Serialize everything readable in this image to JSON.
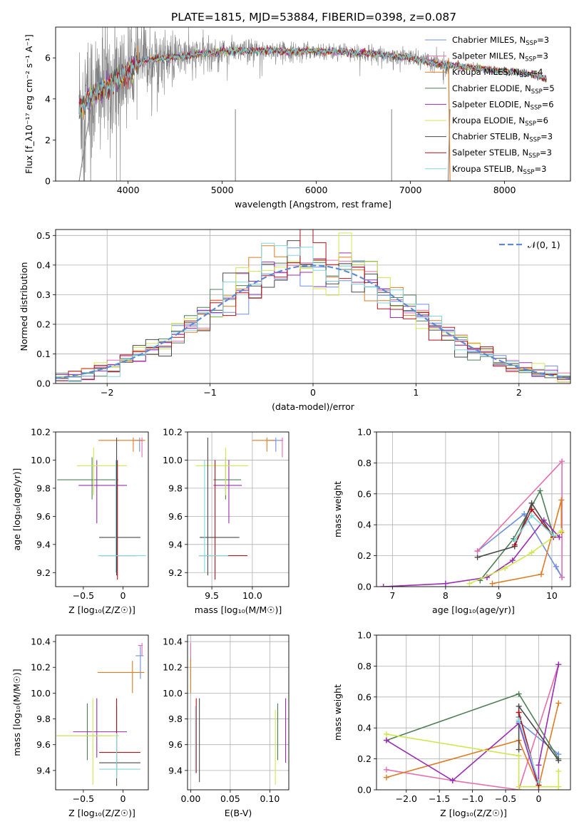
{
  "figure_title": "PLATE=1815, MJD=53884, FIBERID=0398, z=0.087",
  "colors": {
    "chabrier_miles": "#6f8fe0",
    "salpeter_miles": "#e66fae",
    "kroupa_miles": "#e07b22",
    "chabrier_elodie": "#4f7f57",
    "salpeter_elodie": "#9a2cb5",
    "kroupa_elodie": "#cfe84f",
    "chabrier_stelib": "#4a4a4a",
    "salpeter_stelib": "#b3121a",
    "kroupa_stelib": "#7fd8df",
    "data_spectrum": "#808080",
    "gaussian": "#5b8ad6",
    "grid": "#b0b0b0"
  },
  "chart_data": [
    {
      "id": "spectrum",
      "type": "line",
      "title": "",
      "xlabel": "wavelength [Angstrom, rest frame]",
      "ylabel": "Flux [f_λ10⁻¹⁷ erg cm⁻² s⁻¹ A⁻¹]",
      "xlim": [
        3230,
        8700
      ],
      "ylim": [
        0,
        7.5
      ],
      "xticks": [
        4000,
        5000,
        6000,
        7000,
        8000
      ],
      "yticks": [
        0,
        2,
        4,
        6
      ],
      "grid": false,
      "legend_position": "right",
      "legend": [
        {
          "label": "Chabrier MILES, N",
          "sub": "SSP",
          "suffix": "=3",
          "color": "chabrier_miles"
        },
        {
          "label": "Salpeter MILES, N",
          "sub": "SSP",
          "suffix": "=3",
          "color": "salpeter_miles"
        },
        {
          "label": "Kroupa MILES, N",
          "sub": "SSP",
          "suffix": "=4",
          "color": "kroupa_miles"
        },
        {
          "label": "Chabrier ELODIE, N",
          "sub": "SSP",
          "suffix": "=5",
          "color": "chabrier_elodie"
        },
        {
          "label": "Salpeter ELODIE, N",
          "sub": "SSP",
          "suffix": "=6",
          "color": "salpeter_elodie"
        },
        {
          "label": "Kroupa ELODIE, N",
          "sub": "SSP",
          "suffix": "=6",
          "color": "kroupa_elodie"
        },
        {
          "label": "Chabrier STELIB, N",
          "sub": "SSP",
          "suffix": "=3",
          "color": "chabrier_stelib"
        },
        {
          "label": "Salpeter STELIB, N",
          "sub": "SSP",
          "suffix": "=3",
          "color": "salpeter_stelib"
        },
        {
          "label": "Kroupa STELIB, N",
          "sub": "SSP",
          "suffix": "=3",
          "color": "kroupa_stelib"
        }
      ],
      "continuum": [
        [
          3500,
          3.6
        ],
        [
          3600,
          4.1
        ],
        [
          3700,
          4.4
        ],
        [
          3800,
          4.7
        ],
        [
          3900,
          5.0
        ],
        [
          4000,
          5.3
        ],
        [
          4100,
          5.7
        ],
        [
          4200,
          5.9
        ],
        [
          4400,
          6.0
        ],
        [
          4600,
          6.1
        ],
        [
          4800,
          6.2
        ],
        [
          5000,
          6.3
        ],
        [
          5200,
          6.35
        ],
        [
          5400,
          6.35
        ],
        [
          5600,
          6.35
        ],
        [
          5800,
          6.3
        ],
        [
          6000,
          6.35
        ],
        [
          6200,
          6.3
        ],
        [
          6400,
          6.25
        ],
        [
          6600,
          6.2
        ],
        [
          6800,
          6.1
        ],
        [
          7000,
          6.0
        ],
        [
          7200,
          5.8
        ],
        [
          7300,
          5.7
        ],
        [
          7500,
          5.6
        ],
        [
          7700,
          5.5
        ],
        [
          7900,
          5.4
        ],
        [
          8100,
          5.3
        ],
        [
          8300,
          5.2
        ],
        [
          8450,
          4.95
        ]
      ],
      "noise": [
        [
          3480,
          3.5
        ],
        [
          3900,
          2.5
        ],
        [
          4200,
          1.6
        ],
        [
          4600,
          0.8
        ],
        [
          5200,
          0.5
        ],
        [
          6000,
          0.35
        ],
        [
          6800,
          0.35
        ],
        [
          7300,
          0.45
        ]
      ],
      "data_range": [
        3480,
        7420
      ],
      "model_range": [
        3480,
        8450
      ]
    },
    {
      "id": "residuals",
      "type": "histogram",
      "xlabel": "(data-model)/error",
      "ylabel": "Normed distribution",
      "xlim": [
        -2.5,
        2.5
      ],
      "ylim": [
        0,
        0.52
      ],
      "xticks": [
        -2,
        -1,
        0,
        1,
        2
      ],
      "yticks": [
        0,
        0.1,
        0.2,
        0.3,
        0.4,
        0.5
      ],
      "grid": true,
      "bin_width": 0.125,
      "legend_position": "top-right",
      "legend": [
        {
          "label": "𝒩(0, 1)",
          "color": "gaussian",
          "style": "dashed"
        }
      ]
    },
    {
      "id": "age_vs_z",
      "type": "errorbar",
      "xlabel": "Z [log₁₀(Z/Z☉)]",
      "ylabel": "age  [log₁₀(age/yr)]",
      "xlim": [
        -0.85,
        0.32
      ],
      "ylim": [
        9.1,
        10.2
      ],
      "xticks": [
        -0.5,
        0.0
      ],
      "yticks": [
        9.2,
        9.4,
        9.6,
        9.8,
        10.0,
        10.2
      ],
      "grid": false,
      "points": [
        {
          "c": "chabrier_miles",
          "x": 0.21,
          "xl": 0.07,
          "xr": 0.03,
          "y": 10.14,
          "yl": 0.08,
          "yr": 0.02
        },
        {
          "c": "salpeter_miles",
          "x": 0.24,
          "xl": 0.05,
          "xr": 0.01,
          "y": 10.14,
          "yl": 0.12,
          "yr": 0.02
        },
        {
          "c": "kroupa_miles",
          "x": 0.13,
          "xl": 0.44,
          "xr": 0.15,
          "y": 10.14,
          "yl": 0.08,
          "yr": 0.02
        },
        {
          "c": "chabrier_elodie",
          "x": -0.39,
          "xl": 0.44,
          "xr": 0.33,
          "y": 9.86,
          "yl": 0.14,
          "yr": 0.16
        },
        {
          "c": "salpeter_elodie",
          "x": -0.33,
          "xl": 0.23,
          "xr": 0.38,
          "y": 9.82,
          "yl": 0.27,
          "yr": 0.18
        },
        {
          "c": "kroupa_elodie",
          "x": -0.37,
          "xl": 0.21,
          "xr": 0.42,
          "y": 9.96,
          "yl": 0.21,
          "yr": 0.13
        },
        {
          "c": "chabrier_stelib",
          "x": -0.08,
          "xl": 0.22,
          "xr": 0.3,
          "y": 9.45,
          "yl": 0.27,
          "yr": 0.71
        },
        {
          "c": "salpeter_stelib",
          "x": -0.07,
          "xl": 0.22,
          "xr": 0.24,
          "y": 9.32,
          "yl": 0.17,
          "yr": 0.68
        },
        {
          "c": "kroupa_stelib",
          "x": -0.09,
          "xl": 0.22,
          "xr": 0.38,
          "y": 9.32,
          "yl": 0.12,
          "yr": 0.68
        }
      ]
    },
    {
      "id": "age_vs_mass",
      "type": "errorbar",
      "xlabel": "mass [log₁₀(M/M☉)]",
      "ylabel": "",
      "xlim": [
        9.2,
        10.45
      ],
      "ylim": [
        9.1,
        10.2
      ],
      "xticks": [
        9.5,
        10.0
      ],
      "yticks": [
        9.2,
        9.4,
        9.6,
        9.8,
        10.0,
        10.2
      ],
      "grid": true,
      "points": [
        {
          "c": "chabrier_miles",
          "x": 10.29,
          "xl": 0.09,
          "xr": 0.08,
          "y": 10.14,
          "yl": 0.08,
          "yr": 0.02
        },
        {
          "c": "salpeter_miles",
          "x": 10.37,
          "xl": 0.03,
          "xr": 0.01,
          "y": 10.14,
          "yl": 0.12,
          "yr": 0.02
        },
        {
          "c": "kroupa_miles",
          "x": 10.18,
          "xl": 0.18,
          "xr": 0.1,
          "y": 10.14,
          "yl": 0.08,
          "yr": 0.02
        },
        {
          "c": "chabrier_elodie",
          "x": 9.67,
          "xl": 0.15,
          "xr": 0.19,
          "y": 9.86,
          "yl": 0.14,
          "yr": 0.16
        },
        {
          "c": "salpeter_elodie",
          "x": 9.71,
          "xl": 0.19,
          "xr": 0.16,
          "y": 9.82,
          "yl": 0.27,
          "yr": 0.18
        },
        {
          "c": "kroupa_elodie",
          "x": 9.67,
          "xl": 0.37,
          "xr": 0.28,
          "y": 9.96,
          "yl": 0.21,
          "yr": 0.13
        },
        {
          "c": "chabrier_stelib",
          "x": 9.45,
          "xl": 0.1,
          "xr": 0.39,
          "y": 9.45,
          "yl": 0.27,
          "yr": 0.71
        },
        {
          "c": "salpeter_stelib",
          "x": 9.54,
          "xl": 0.2,
          "xr": 0.4,
          "y": 9.32,
          "yl": 0.17,
          "yr": 0.68
        },
        {
          "c": "kroupa_stelib",
          "x": 9.41,
          "xl": 0.07,
          "xr": 0.29,
          "y": 9.32,
          "yl": 0.12,
          "yr": 0.68
        }
      ]
    },
    {
      "id": "weight_vs_age",
      "type": "line",
      "xlabel": "age  [log₁₀(age/yr)]",
      "ylabel": "mass weight",
      "xlim": [
        6.7,
        10.35
      ],
      "ylim": [
        0,
        1.0
      ],
      "xticks": [
        7,
        8,
        9,
        10
      ],
      "yticks": [
        0.0,
        0.2,
        0.4,
        0.6,
        0.8,
        1.0
      ],
      "grid": true,
      "series": [
        {
          "c": "chabrier_miles",
          "x": [
            8.6,
            9.48,
            10.19,
            10.08
          ],
          "y": [
            0.23,
            0.47,
            0.06,
            0.13
          ]
        },
        {
          "c": "salpeter_miles",
          "x": [
            8.6,
            10.19,
            10.19
          ],
          "y": [
            0.23,
            0.81,
            0.06
          ]
        },
        {
          "c": "kroupa_miles",
          "x": [
            8.88,
            9.8,
            10.18,
            10.18
          ],
          "y": [
            0.02,
            0.08,
            0.56,
            0.35
          ]
        },
        {
          "c": "chabrier_elodie",
          "x": [
            8.65,
            9.28,
            9.78,
            10.03
          ],
          "y": [
            0.04,
            0.31,
            0.62,
            0.33
          ]
        },
        {
          "c": "salpeter_elodie",
          "x": [
            6.83,
            8.0,
            8.78,
            9.26,
            9.85,
            10.14
          ],
          "y": [
            0.0,
            0.02,
            0.06,
            0.17,
            0.43,
            0.32
          ]
        },
        {
          "c": "kroupa_elodie",
          "x": [
            8.45,
            9.12,
            9.62,
            10.18
          ],
          "y": [
            0.02,
            0.12,
            0.22,
            0.36
          ]
        },
        {
          "c": "chabrier_stelib",
          "x": [
            8.6,
            9.3,
            9.62,
            10.03
          ],
          "y": [
            0.19,
            0.26,
            0.54,
            0.32
          ]
        },
        {
          "c": "salpeter_stelib",
          "x": [
            9.3,
            9.62,
            10.03
          ],
          "y": [
            0.27,
            0.5,
            0.32
          ]
        },
        {
          "c": "kroupa_stelib",
          "x": [
            9.3,
            9.62,
            10.03
          ],
          "y": [
            0.3,
            0.46,
            0.33
          ]
        }
      ]
    },
    {
      "id": "mass_vs_z",
      "type": "errorbar",
      "xlabel": "Z [log₁₀(Z/Z☉)]",
      "ylabel": "mass [log₁₀(M/M☉)]",
      "xlim": [
        -0.85,
        0.32
      ],
      "ylim": [
        9.25,
        10.45
      ],
      "xticks": [
        -0.5,
        0.0
      ],
      "yticks": [
        9.4,
        9.6,
        9.8,
        10.0,
        10.2,
        10.4
      ],
      "grid": false,
      "points": [
        {
          "c": "chabrier_miles",
          "x": 0.22,
          "xl": 0.06,
          "xr": 0.04,
          "y": 10.29,
          "yl": 0.18,
          "yr": 0.08
        },
        {
          "c": "salpeter_miles",
          "x": 0.24,
          "xl": 0.05,
          "xr": 0.01,
          "y": 10.37,
          "yl": 0.08,
          "yr": 0.02
        },
        {
          "c": "kroupa_miles",
          "x": 0.12,
          "xl": 0.44,
          "xr": 0.15,
          "y": 10.16,
          "yl": 0.16,
          "yr": 0.09
        },
        {
          "c": "chabrier_elodie",
          "x": -0.45,
          "xl": 0.38,
          "xr": 0.3,
          "y": 9.67,
          "yl": 0.19,
          "yr": 0.25
        },
        {
          "c": "salpeter_elodie",
          "x": -0.33,
          "xl": 0.3,
          "xr": 0.38,
          "y": 9.7,
          "yl": 0.2,
          "yr": 0.26
        },
        {
          "c": "kroupa_elodie",
          "x": -0.38,
          "xl": 0.46,
          "xr": 0.33,
          "y": 9.67,
          "yl": 0.38,
          "yr": 0.29
        },
        {
          "c": "chabrier_stelib",
          "x": -0.08,
          "xl": 0.22,
          "xr": 0.3,
          "y": 9.46,
          "yl": 0.18,
          "yr": 0.44
        },
        {
          "c": "salpeter_stelib",
          "x": -0.08,
          "xl": 0.22,
          "xr": 0.3,
          "y": 9.54,
          "yl": 0.18,
          "yr": 0.42
        },
        {
          "c": "kroupa_stelib",
          "x": -0.08,
          "xl": 0.22,
          "xr": 0.3,
          "y": 9.41,
          "yl": 0.07,
          "yr": 0.28
        }
      ]
    },
    {
      "id": "mass_vs_ebv",
      "type": "errorbar",
      "xlabel": "E(B-V)",
      "ylabel": "",
      "xlim": [
        -0.004,
        0.124
      ],
      "ylim": [
        9.25,
        10.45
      ],
      "xticks": [
        0.0,
        0.05,
        0.1
      ],
      "yticks": [
        9.4,
        9.6,
        9.8,
        10.0,
        10.2,
        10.4
      ],
      "grid": true,
      "points": [
        {
          "c": "chabrier_miles",
          "x": 0.0,
          "y": 10.29,
          "yl": 0.18,
          "yr": 0.08
        },
        {
          "c": "salpeter_miles",
          "x": 0.0,
          "y": 10.37,
          "yl": 0.08,
          "yr": 0.02
        },
        {
          "c": "kroupa_miles",
          "x": 0.0,
          "y": 10.16,
          "yl": 0.16,
          "yr": 0.11
        },
        {
          "c": "chabrier_elodie",
          "x": 0.11,
          "y": 9.67,
          "yl": 0.19,
          "yr": 0.25
        },
        {
          "c": "salpeter_elodie",
          "x": 0.12,
          "y": 9.7,
          "yl": 0.24,
          "yr": 0.26
        },
        {
          "c": "kroupa_elodie",
          "x": 0.107,
          "y": 9.67,
          "yl": 0.38,
          "yr": 0.2
        },
        {
          "c": "chabrier_stelib",
          "x": 0.011,
          "y": 9.61,
          "yl": 0.3,
          "yr": 0.35
        },
        {
          "c": "salpeter_stelib",
          "x": 0.007,
          "y": 9.6,
          "yl": 0.22,
          "yr": 0.36
        },
        {
          "c": "kroupa_stelib",
          "x": 0.006,
          "y": 9.6,
          "yl": 0.22,
          "yr": 0.3
        }
      ]
    },
    {
      "id": "weight_vs_z",
      "type": "line",
      "xlabel": "Z [log₁₀(Z/Z☉)]",
      "ylabel": "mass weight",
      "xlim": [
        -2.45,
        0.48
      ],
      "ylim": [
        0,
        1.0
      ],
      "xticks": [
        -2.0,
        -1.5,
        -1.0,
        -0.5,
        0.0
      ],
      "yticks": [
        0.0,
        0.2,
        0.4,
        0.6,
        0.8,
        1.0
      ],
      "grid": true,
      "series": [
        {
          "c": "chabrier_miles",
          "x": [
            -0.3,
            -0.3,
            0.3
          ],
          "y": [
            0.47,
            0.44,
            0.23
          ]
        },
        {
          "c": "salpeter_miles",
          "x": [
            -2.3,
            -1.3,
            -0.3,
            0.3
          ],
          "y": [
            0.13,
            0.06,
            0.0,
            0.81
          ]
        },
        {
          "c": "kroupa_miles",
          "x": [
            -2.3,
            -0.3,
            0.0,
            0.3
          ],
          "y": [
            0.08,
            0.32,
            0.02,
            0.56
          ]
        },
        {
          "c": "chabrier_elodie",
          "x": [
            -2.3,
            -0.3,
            0.3
          ],
          "y": [
            0.32,
            0.62,
            0.2
          ]
        },
        {
          "c": "salpeter_elodie",
          "x": [
            -2.3,
            -1.3,
            -0.3,
            0.0,
            0.0,
            0.3
          ],
          "y": [
            0.32,
            0.06,
            0.43,
            0.02,
            0.16,
            0.81
          ]
        },
        {
          "c": "kroupa_elodie",
          "x": [
            -2.3,
            -0.3,
            -0.3,
            0.3,
            0.3
          ],
          "y": [
            0.36,
            0.22,
            0.02,
            0.02,
            0.12
          ]
        },
        {
          "c": "chabrier_stelib",
          "x": [
            -0.3,
            -0.3,
            0.3
          ],
          "y": [
            0.26,
            0.54,
            0.19
          ]
        },
        {
          "c": "salpeter_stelib",
          "x": [
            -0.3,
            0.0
          ],
          "y": [
            0.5,
            0.03
          ]
        },
        {
          "c": "kroupa_stelib",
          "x": [
            -0.3,
            0.0
          ],
          "y": [
            0.45,
            0.05
          ]
        }
      ]
    }
  ]
}
